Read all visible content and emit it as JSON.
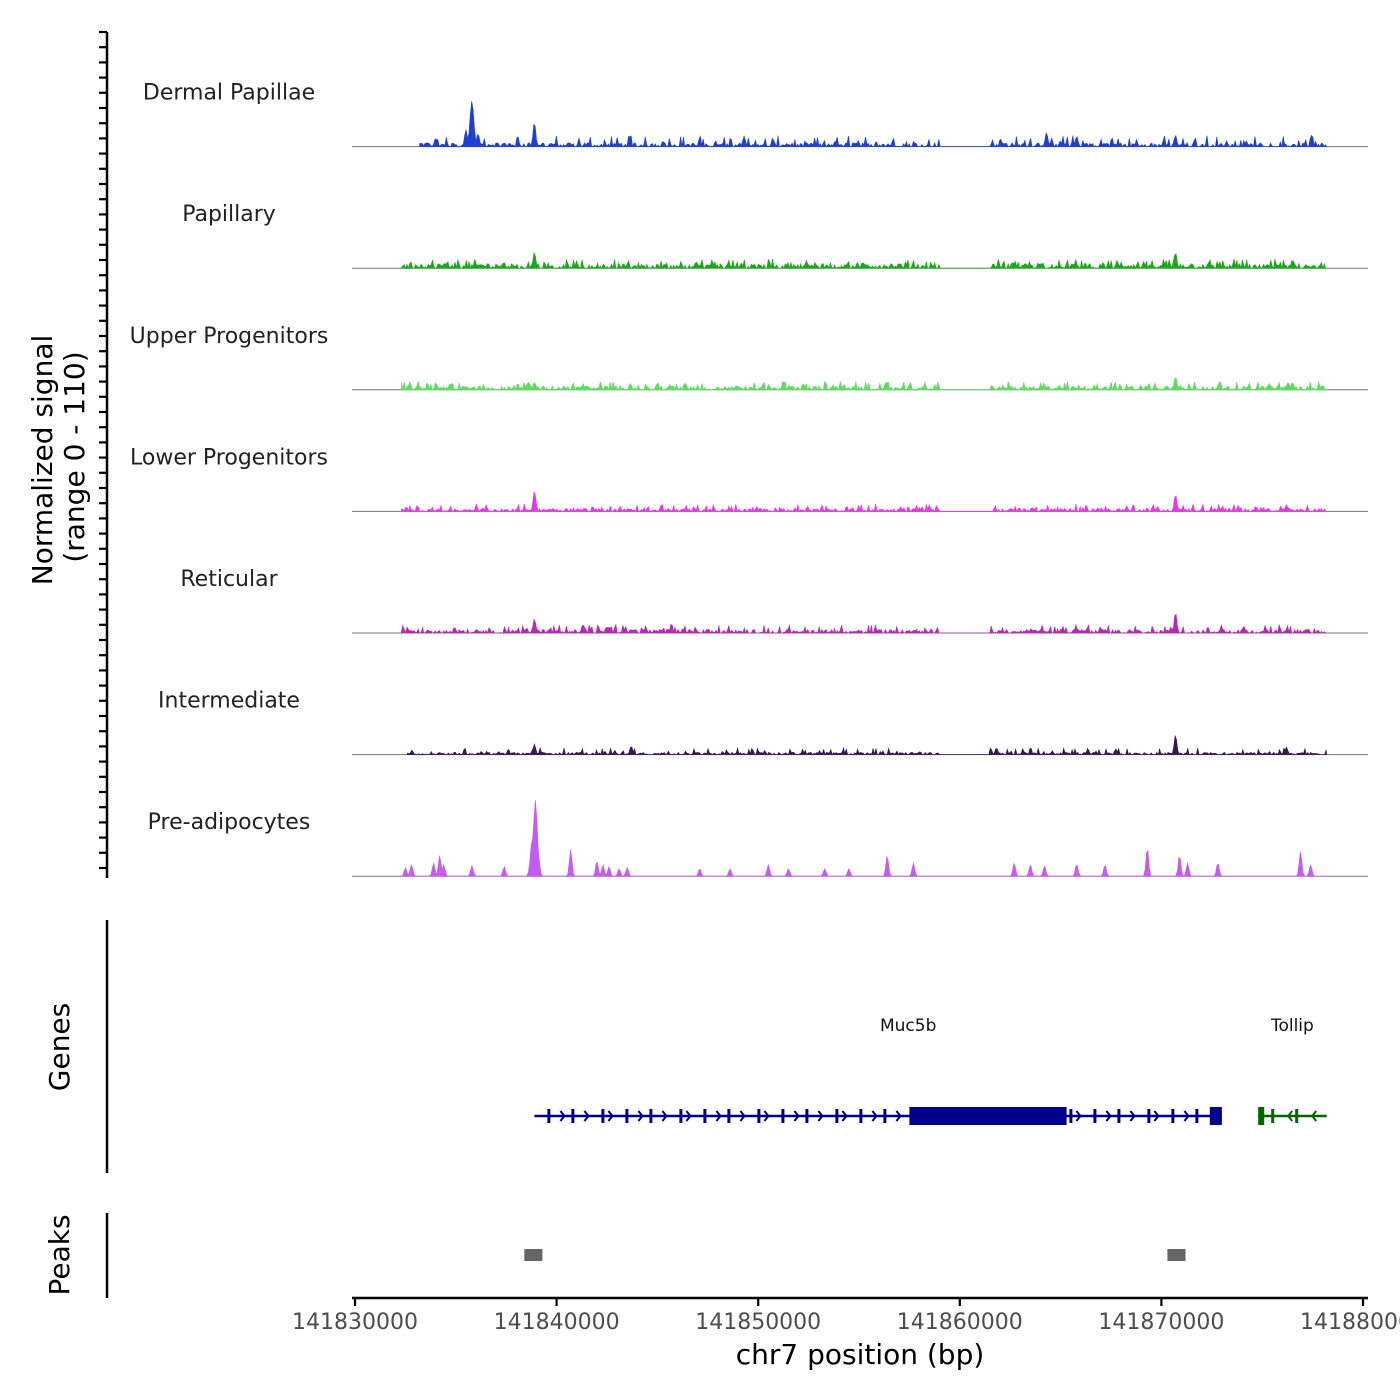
{
  "chart_data": {
    "type": "area",
    "title": "",
    "chrom": "chr7",
    "xlabel": "chr7 position (bp)",
    "ylabel": "Normalized signal",
    "ylabel_range": "(range 0 - 110)",
    "ylim": [
      0,
      110
    ],
    "xlim": [
      141830000,
      141880000
    ],
    "x_ticks": [
      141830000,
      141840000,
      141850000,
      141860000,
      141870000,
      141880000
    ],
    "x_tick_labels": [
      "141830000",
      "141840000",
      "141850000",
      "141860000",
      "141870000",
      "141880000"
    ],
    "series": [
      {
        "name": "Dermal Papillae",
        "color": "#1f3fd1",
        "start": 141833200,
        "end": 141878200,
        "gap": [
          141859000,
          141861500
        ],
        "base": 5,
        "noise": 5,
        "peaks": [
          {
            "x": 141834000,
            "y": 9
          },
          {
            "x": 141835500,
            "y": 18
          },
          {
            "x": 141835800,
            "y": 48
          },
          {
            "x": 141836100,
            "y": 14
          },
          {
            "x": 141838900,
            "y": 26
          },
          {
            "x": 141849300,
            "y": 11
          },
          {
            "x": 141864300,
            "y": 15
          },
          {
            "x": 141865800,
            "y": 11
          },
          {
            "x": 141870700,
            "y": 12
          }
        ]
      },
      {
        "name": "Papillary",
        "color": "#1aa81a",
        "start": 141832300,
        "end": 141878200,
        "gap": [
          141859000,
          141861500
        ],
        "base": 6,
        "noise": 3,
        "peaks": [
          {
            "x": 141838900,
            "y": 17
          },
          {
            "x": 141870700,
            "y": 17
          },
          {
            "x": 141876500,
            "y": 9
          }
        ]
      },
      {
        "name": "Upper Progenitors",
        "color": "#5edc5e",
        "start": 141832300,
        "end": 141878200,
        "gap": [
          141859000,
          141861500
        ],
        "base": 5,
        "noise": 3,
        "peaks": [
          {
            "x": 141838900,
            "y": 8
          },
          {
            "x": 141870700,
            "y": 14
          },
          {
            "x": 141876500,
            "y": 8
          }
        ]
      },
      {
        "name": "Lower Progenitors",
        "color": "#e53ae0",
        "start": 141832300,
        "end": 141878200,
        "gap": [
          141859000,
          141861500
        ],
        "base": 4,
        "noise": 3,
        "peaks": [
          {
            "x": 141838900,
            "y": 22
          },
          {
            "x": 141870700,
            "y": 18
          },
          {
            "x": 141876200,
            "y": 7
          }
        ]
      },
      {
        "name": "Reticular",
        "color": "#b52ab4",
        "start": 141832300,
        "end": 141878200,
        "gap": [
          141859000,
          141861500
        ],
        "base": 5,
        "noise": 3,
        "peaks": [
          {
            "x": 141838900,
            "y": 15
          },
          {
            "x": 141841300,
            "y": 9
          },
          {
            "x": 141870700,
            "y": 22
          }
        ]
      },
      {
        "name": "Intermediate",
        "color": "#3c1553",
        "start": 141832600,
        "end": 141878200,
        "gap": [
          141859000,
          141861500
        ],
        "base": 3,
        "noise": 3,
        "peaks": [
          {
            "x": 141838900,
            "y": 11
          },
          {
            "x": 141843700,
            "y": 9
          },
          {
            "x": 141870700,
            "y": 21
          },
          {
            "x": 141876200,
            "y": 8
          }
        ]
      },
      {
        "name": "Pre-adipocytes",
        "color": "#c55cf2",
        "start": 141832300,
        "end": 141878200,
        "gap": [
          141859000,
          141861500
        ],
        "base": 0,
        "noise": 0,
        "peaks": [
          {
            "x": 141832500,
            "y": 9
          },
          {
            "x": 141832800,
            "y": 12
          },
          {
            "x": 141833900,
            "y": 14
          },
          {
            "x": 141834200,
            "y": 22
          },
          {
            "x": 141834400,
            "y": 12
          },
          {
            "x": 141835800,
            "y": 11
          },
          {
            "x": 141837400,
            "y": 10
          },
          {
            "x": 141838800,
            "y": 40
          },
          {
            "x": 141838950,
            "y": 80
          },
          {
            "x": 141839100,
            "y": 20
          },
          {
            "x": 141840700,
            "y": 28
          },
          {
            "x": 141842000,
            "y": 16
          },
          {
            "x": 141842300,
            "y": 12
          },
          {
            "x": 141842600,
            "y": 10
          },
          {
            "x": 141843100,
            "y": 8
          },
          {
            "x": 141843500,
            "y": 9
          },
          {
            "x": 141847100,
            "y": 8
          },
          {
            "x": 141848600,
            "y": 8
          },
          {
            "x": 141850500,
            "y": 12
          },
          {
            "x": 141851500,
            "y": 8
          },
          {
            "x": 141853300,
            "y": 8
          },
          {
            "x": 141854500,
            "y": 8
          },
          {
            "x": 141856400,
            "y": 22
          },
          {
            "x": 141857700,
            "y": 14
          },
          {
            "x": 141861300,
            "y": 22
          },
          {
            "x": 141862700,
            "y": 14
          },
          {
            "x": 141863500,
            "y": 12
          },
          {
            "x": 141864200,
            "y": 11
          },
          {
            "x": 141865800,
            "y": 13
          },
          {
            "x": 141867200,
            "y": 12
          },
          {
            "x": 141869300,
            "y": 30
          },
          {
            "x": 141870900,
            "y": 22
          },
          {
            "x": 141871300,
            "y": 14
          },
          {
            "x": 141872800,
            "y": 14
          },
          {
            "x": 141876900,
            "y": 26
          },
          {
            "x": 141877400,
            "y": 12
          }
        ]
      }
    ],
    "genes": [
      {
        "name": "Muc5b",
        "strand": "+",
        "color": "#00008b",
        "start": 141838900,
        "end": 141873000,
        "cds_block": [
          141857500,
          141865300
        ],
        "exon_tail": [
          141872400,
          141873000
        ]
      },
      {
        "name": "Tollip",
        "strand": "-",
        "color": "#006400",
        "start": 141874800,
        "end": 141878200,
        "exon_tail": [
          141874800,
          141875100
        ]
      }
    ],
    "peaks": [
      {
        "start": 141838400,
        "end": 141839300
      },
      {
        "start": 141870300,
        "end": 141871200
      }
    ],
    "panel_labels": {
      "genes": "Genes",
      "peaks": "Peaks"
    }
  }
}
